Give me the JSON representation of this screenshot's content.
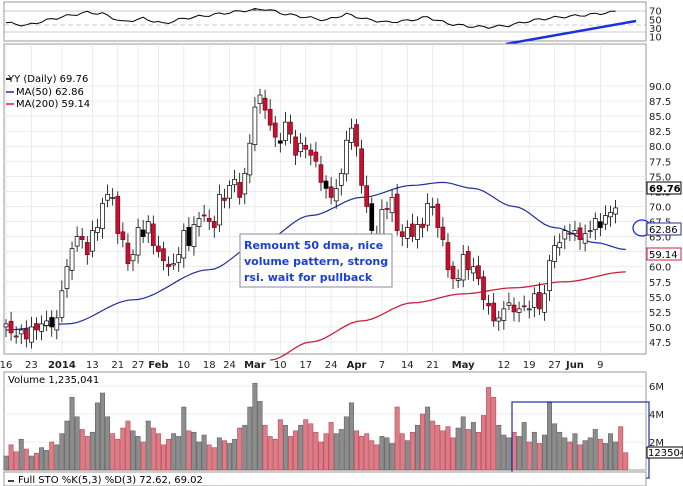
{
  "chart_data": {
    "type": "candlestick",
    "symbol_label": "YY (Daily) 69.76",
    "last_price": "69.76",
    "ma50_label": "MA(50) 62.86",
    "ma200_label": "MA(200) 59.14",
    "ma50_value": "62.86",
    "ma200_value": "59.14",
    "volume_label": "Volume 1,235,041",
    "volume_value": "1235041",
    "sto_label": "Full STO %K(5,3) %D(3) 72.62, 69.02",
    "sto_k_value": "72.62,",
    "sto_d_value": "69.02",
    "annotation": [
      "Remount 50 dma, nice",
      "volume pattern, strong",
      "rsi. wait for pullback"
    ],
    "price_ticks": [
      "90.0",
      "87.5",
      "85.0",
      "82.5",
      "80.0",
      "77.5",
      "75.0",
      "72.5",
      "70.0",
      "67.5",
      "65.0",
      "62.5",
      "60.0",
      "57.5",
      "55.0",
      "52.5",
      "50.0",
      "47.5"
    ],
    "rsi_ticks": [
      "70",
      "50",
      "30",
      "10"
    ],
    "volume_ticks": [
      "6M",
      "4M",
      "2M"
    ],
    "x_ticks": [
      {
        "label": "16",
        "i": 0
      },
      {
        "label": "23",
        "i": 5
      },
      {
        "label": "2014",
        "i": 11
      },
      {
        "label": "13",
        "i": 17
      },
      {
        "label": "21",
        "i": 22
      },
      {
        "label": "27",
        "i": 26
      },
      {
        "label": "Feb",
        "i": 30
      },
      {
        "label": "10",
        "i": 35
      },
      {
        "label": "18",
        "i": 40
      },
      {
        "label": "24",
        "i": 44
      },
      {
        "label": "Mar",
        "i": 49
      },
      {
        "label": "10",
        "i": 54
      },
      {
        "label": "17",
        "i": 59
      },
      {
        "label": "24",
        "i": 64
      },
      {
        "label": "Apr",
        "i": 69
      },
      {
        "label": "7",
        "i": 74
      },
      {
        "label": "14",
        "i": 79
      },
      {
        "label": "21",
        "i": 84
      },
      {
        "label": "May",
        "i": 90
      },
      {
        "label": "12",
        "i": 98
      },
      {
        "label": "19",
        "i": 103
      },
      {
        "label": "27",
        "i": 108
      },
      {
        "label": "Jun",
        "i": 112
      },
      {
        "label": "9",
        "i": 117
      }
    ],
    "price_range": [
      45.5,
      92.5
    ],
    "rsi_range": [
      0,
      90
    ],
    "volume_range": [
      0,
      7000000
    ],
    "closes": [
      50.5,
      49.0,
      48.5,
      49.5,
      48.0,
      50.0,
      49.5,
      50.5,
      51.0,
      50.0,
      51.5,
      56.0,
      60.0,
      63.0,
      65.0,
      64.5,
      62.0,
      66.0,
      66.5,
      70.5,
      72.0,
      71.5,
      65.5,
      64.5,
      60.5,
      62.0,
      66.5,
      65.0,
      67.5,
      63.5,
      62.5,
      61.0,
      60.0,
      60.5,
      62.0,
      66.0,
      63.5,
      67.0,
      68.0,
      68.5,
      67.5,
      66.5,
      72.0,
      71.0,
      73.5,
      74.5,
      71.5,
      75.5,
      80.5,
      86.5,
      88.5,
      86.0,
      83.5,
      81.5,
      80.5,
      84.0,
      82.0,
      78.5,
      80.5,
      79.5,
      78.5,
      77.5,
      74.0,
      73.0,
      71.5,
      73.0,
      75.5,
      81.0,
      83.0,
      80.0,
      73.5,
      70.0,
      66.0,
      65.0,
      69.5,
      69.5,
      71.5,
      66.0,
      65.0,
      66.5,
      65.0,
      67.0,
      66.5,
      70.5,
      70.0,
      66.5,
      64.5,
      59.5,
      58.0,
      58.0,
      62.0,
      59.5,
      60.0,
      58.0,
      54.5,
      53.5,
      51.0,
      51.5,
      53.0,
      54.0,
      52.5,
      53.0,
      53.5,
      53.0,
      55.5,
      53.0,
      55.5,
      61.0,
      63.5,
      64.0,
      66.0,
      65.5,
      66.0,
      64.5,
      65.5,
      66.0,
      68.0,
      66.5,
      68.5,
      69.0,
      69.76
    ],
    "ma50": [
      {
        "i": 0,
        "v": 49.5
      },
      {
        "i": 12,
        "v": 50.5
      },
      {
        "i": 25,
        "v": 54.5
      },
      {
        "i": 40,
        "v": 59.5
      },
      {
        "i": 50,
        "v": 64.0
      },
      {
        "i": 60,
        "v": 68.5
      },
      {
        "i": 70,
        "v": 71.5
      },
      {
        "i": 80,
        "v": 73.5
      },
      {
        "i": 86,
        "v": 74.0
      },
      {
        "i": 92,
        "v": 73.0
      },
      {
        "i": 100,
        "v": 70.0
      },
      {
        "i": 108,
        "v": 66.5
      },
      {
        "i": 116,
        "v": 64.0
      },
      {
        "i": 122,
        "v": 62.86
      }
    ],
    "ma200": [
      {
        "i": 52,
        "v": 44.5
      },
      {
        "i": 60,
        "v": 47.5
      },
      {
        "i": 70,
        "v": 51.0
      },
      {
        "i": 80,
        "v": 54.0
      },
      {
        "i": 90,
        "v": 55.5
      },
      {
        "i": 100,
        "v": 56.5
      },
      {
        "i": 110,
        "v": 57.5
      },
      {
        "i": 122,
        "v": 59.14
      }
    ],
    "rsi": [
      {
        "i": 0,
        "v": 42
      },
      {
        "i": 4,
        "v": 36
      },
      {
        "i": 8,
        "v": 48
      },
      {
        "i": 12,
        "v": 58
      },
      {
        "i": 16,
        "v": 66
      },
      {
        "i": 19,
        "v": 63
      },
      {
        "i": 23,
        "v": 44
      },
      {
        "i": 27,
        "v": 52
      },
      {
        "i": 31,
        "v": 40
      },
      {
        "i": 35,
        "v": 52
      },
      {
        "i": 39,
        "v": 58
      },
      {
        "i": 43,
        "v": 64
      },
      {
        "i": 47,
        "v": 70
      },
      {
        "i": 51,
        "v": 74
      },
      {
        "i": 55,
        "v": 62
      },
      {
        "i": 59,
        "v": 55
      },
      {
        "i": 63,
        "v": 48
      },
      {
        "i": 67,
        "v": 62
      },
      {
        "i": 71,
        "v": 50
      },
      {
        "i": 75,
        "v": 43
      },
      {
        "i": 79,
        "v": 47
      },
      {
        "i": 83,
        "v": 55
      },
      {
        "i": 87,
        "v": 40
      },
      {
        "i": 91,
        "v": 34
      },
      {
        "i": 95,
        "v": 32
      },
      {
        "i": 99,
        "v": 36
      },
      {
        "i": 103,
        "v": 46
      },
      {
        "i": 107,
        "v": 53
      },
      {
        "i": 111,
        "v": 57
      },
      {
        "i": 115,
        "v": 61
      },
      {
        "i": 119,
        "v": 66
      },
      {
        "i": 122,
        "v": 72
      }
    ],
    "volume_millions": [
      1.0,
      1.8,
      1.3,
      2.2,
      1.5,
      1.0,
      1.2,
      1.6,
      1.4,
      2.0,
      1.8,
      2.6,
      3.5,
      5.2,
      3.8,
      2.9,
      2.4,
      2.7,
      4.8,
      5.5,
      3.8,
      2.6,
      2.2,
      3.0,
      3.5,
      2.8,
      2.4,
      2.0,
      3.5,
      3.0,
      2.6,
      1.8,
      2.2,
      2.6,
      2.4,
      4.5,
      2.8,
      2.7,
      2.0,
      2.5,
      1.8,
      1.6,
      2.3,
      2.1,
      1.9,
      2.2,
      3.0,
      3.2,
      4.5,
      6.2,
      4.9,
      3.2,
      2.4,
      2.2,
      3.6,
      3.2,
      2.4,
      2.8,
      3.2,
      3.6,
      3.3,
      2.7,
      2.0,
      2.6,
      3.4,
      2.6,
      2.9,
      3.8,
      4.8,
      2.8,
      2.4,
      2.6,
      2.1,
      1.8,
      2.4,
      2.3,
      1.9,
      4.5,
      2.6,
      2.1,
      2.7,
      3.2,
      4.0,
      4.5,
      3.5,
      3.2,
      2.8,
      3.1,
      2.3,
      3.0,
      3.8,
      2.9,
      3.4,
      2.7,
      3.9,
      5.9,
      5.2,
      3.2,
      2.5,
      2.3,
      2.7,
      2.4,
      3.4,
      2.0,
      2.7,
      1.9,
      2.5,
      4.8,
      3.3,
      2.7,
      2.3,
      2.0,
      2.6,
      1.8,
      2.1,
      2.3,
      2.9,
      2.2,
      1.9,
      2.6,
      2.0,
      3.1,
      1.24
    ]
  }
}
